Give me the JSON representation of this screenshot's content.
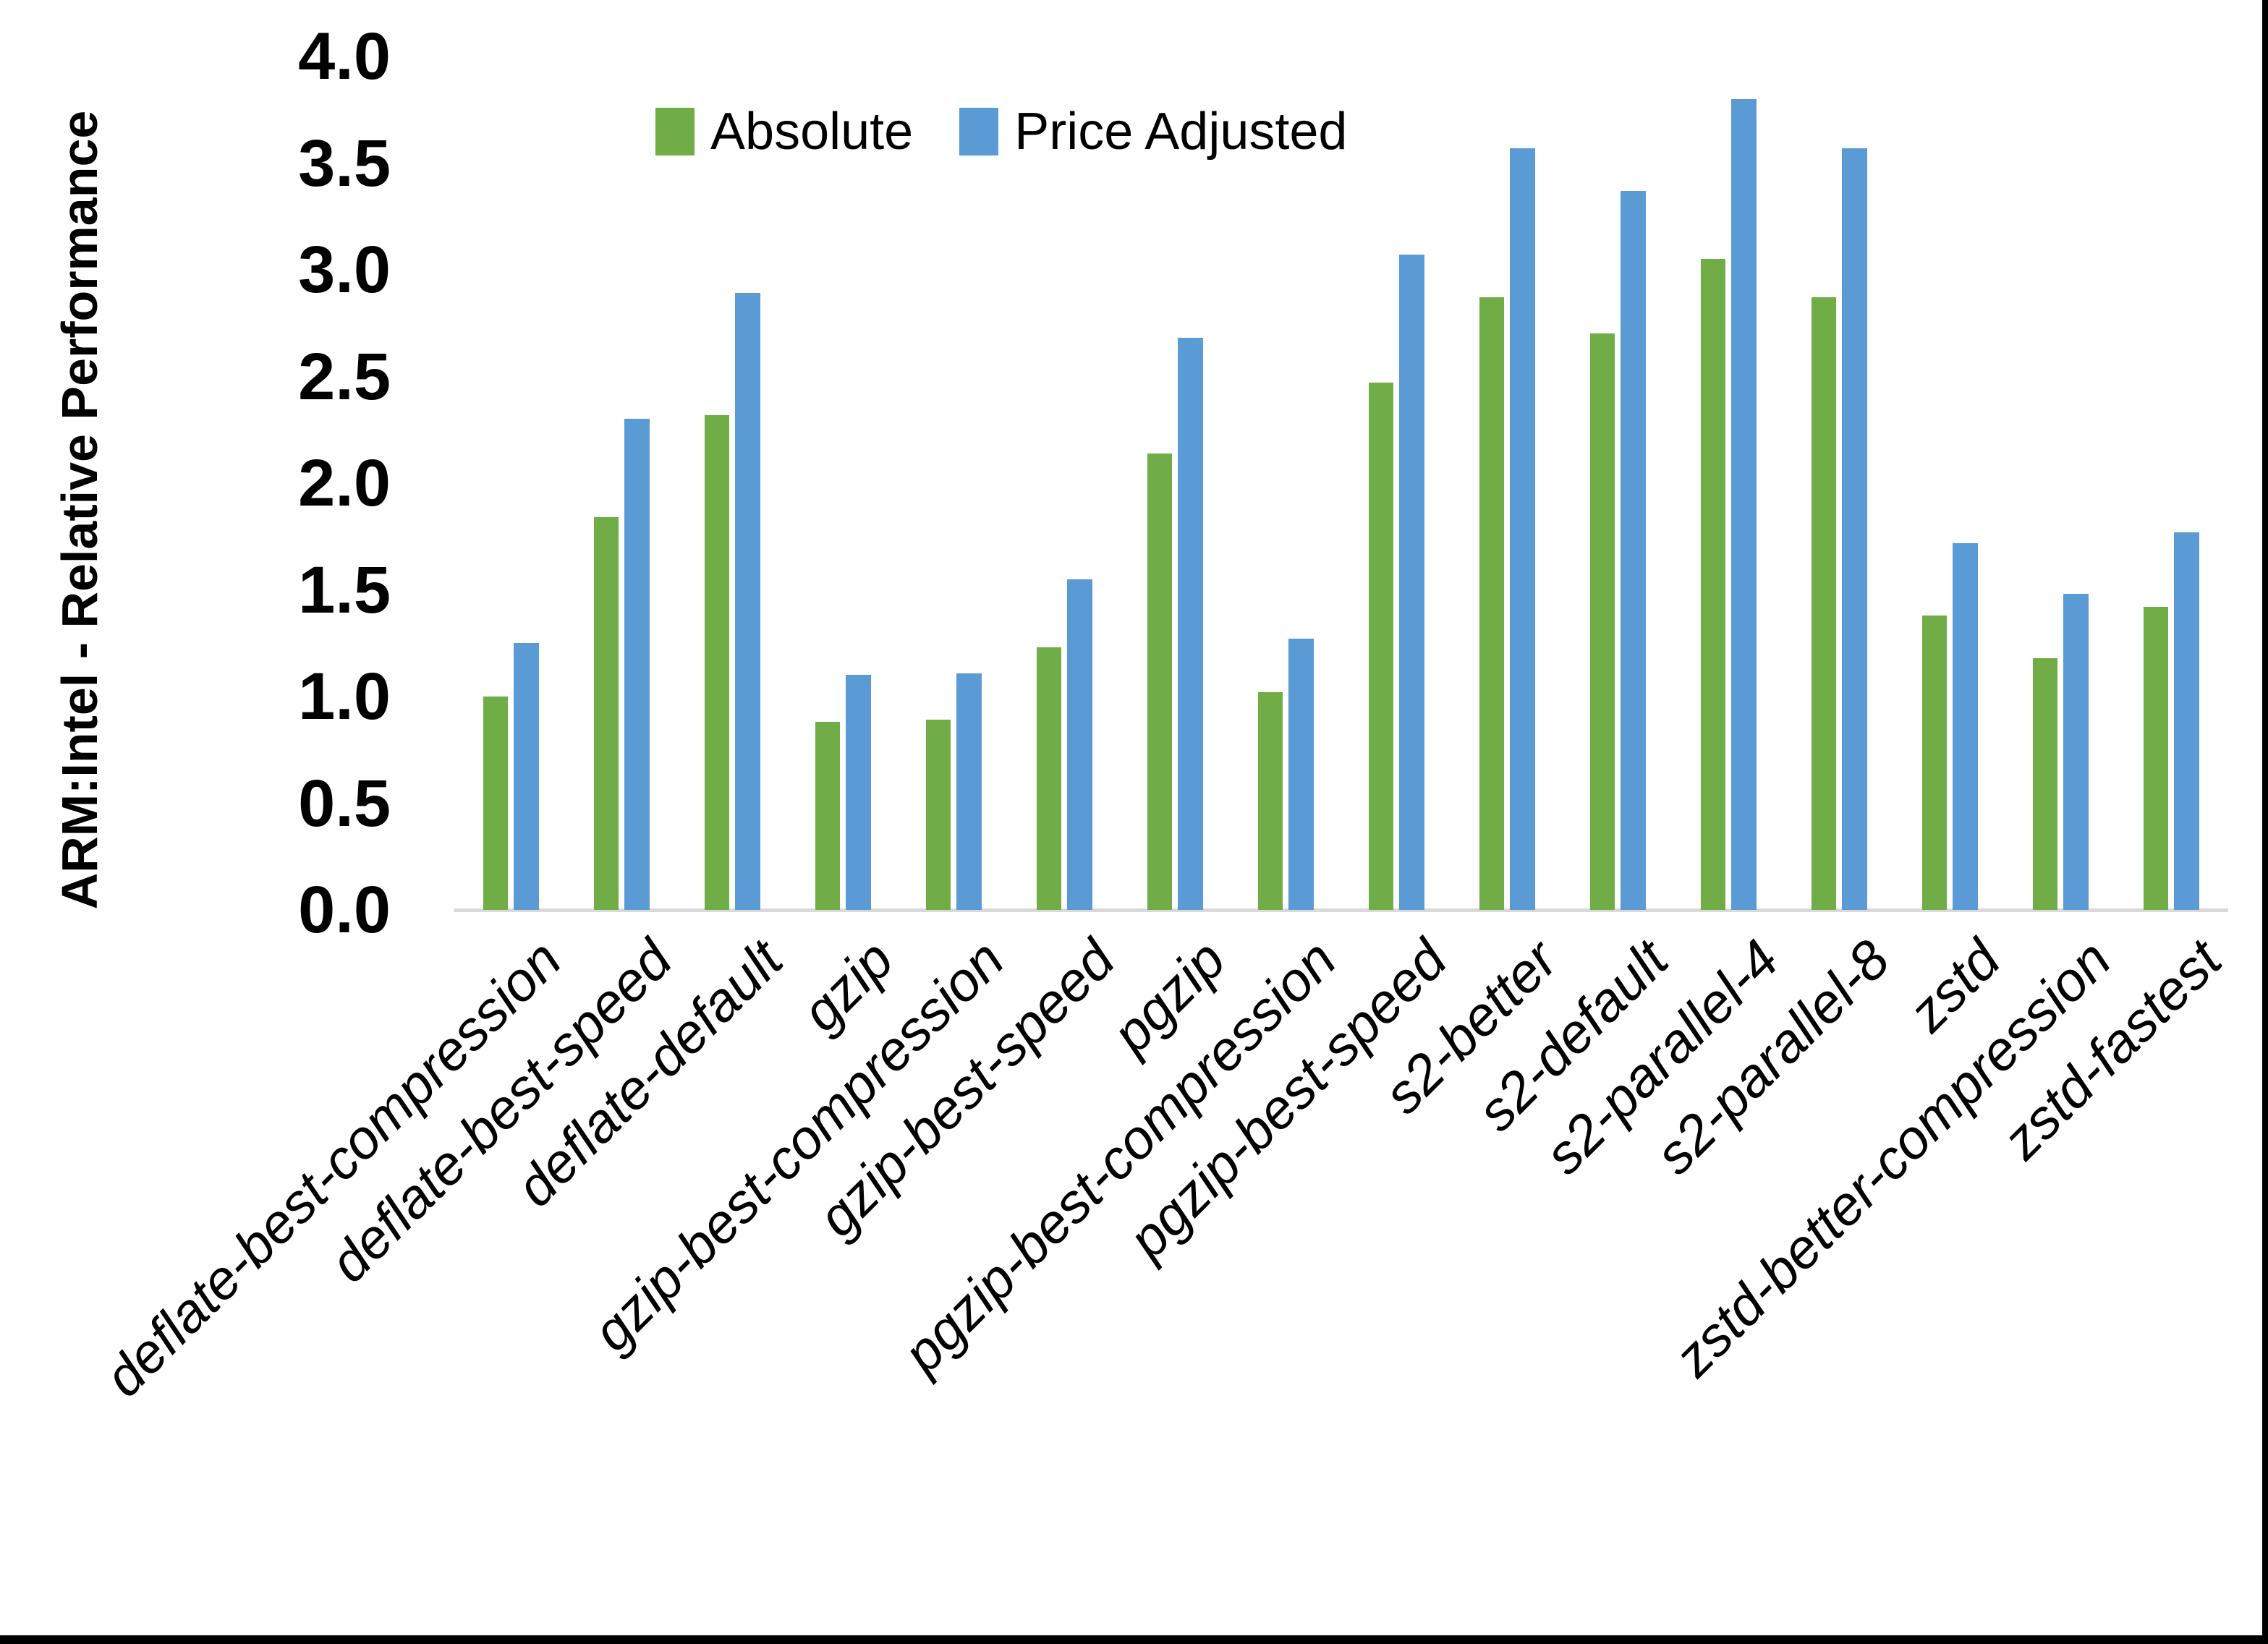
{
  "chart_data": {
    "type": "bar",
    "title": "",
    "ylabel": "ARM:Intel - Relative Performance",
    "xlabel": "",
    "ylim": [
      0.0,
      4.0
    ],
    "ytick_step": 0.5,
    "yticks": [
      "0.0",
      "0.5",
      "1.0",
      "1.5",
      "2.0",
      "2.5",
      "3.0",
      "3.5",
      "4.0"
    ],
    "grid": "off",
    "legend_position": "top-center",
    "categories": [
      "deflate-best-compression",
      "deflate-best-speed",
      "deflate-default",
      "gzip",
      "gzip-best-compression",
      "gzip-best-speed",
      "pgzip",
      "pgzip-best-compression",
      "pgzip-best-speed",
      "s2-better",
      "s2-default",
      "s2-parallel-4",
      "s2-parallel-8",
      "zstd",
      "zstd-better-compression",
      "zstd-fastest"
    ],
    "series": [
      {
        "name": "Absolute",
        "color": "#70AD47",
        "values": [
          1.0,
          1.84,
          2.32,
          0.88,
          0.89,
          1.23,
          2.14,
          1.02,
          2.47,
          2.87,
          2.7,
          3.05,
          2.87,
          1.38,
          1.18,
          1.42
        ]
      },
      {
        "name": "Price Adjusted",
        "color": "#5B9BD5",
        "values": [
          1.25,
          2.3,
          2.89,
          1.1,
          1.11,
          1.55,
          2.68,
          1.27,
          3.07,
          3.57,
          3.37,
          3.8,
          3.57,
          1.72,
          1.48,
          1.77
        ]
      }
    ],
    "axis_line_color": "#D9D9D9",
    "background_color": "#FFFFFF",
    "frame_border_color": "#000000"
  },
  "legend": {
    "absolute_label": "Absolute",
    "price_adjusted_label": "Price Adjusted"
  }
}
